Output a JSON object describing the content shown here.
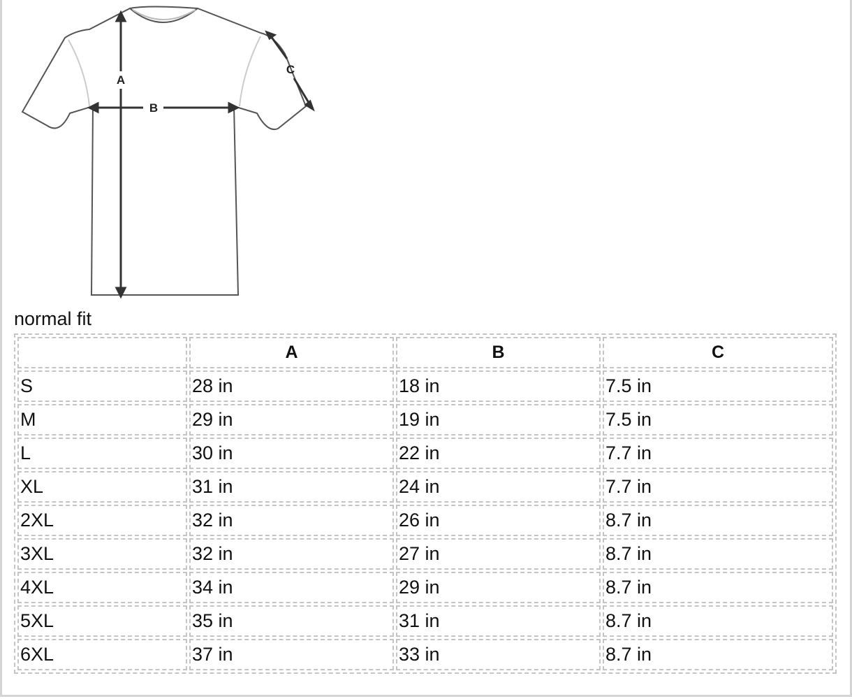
{
  "diagram": {
    "labels": [
      "A",
      "B",
      "C"
    ]
  },
  "fit_label": "normal fit",
  "table": {
    "headers": [
      "",
      "A",
      "B",
      "C"
    ],
    "rows": [
      [
        "S",
        "28 in",
        "18 in",
        "7.5 in"
      ],
      [
        "M",
        "29 in",
        "19 in",
        "7.5 in"
      ],
      [
        "L",
        "30 in",
        "22 in",
        "7.7 in"
      ],
      [
        "XL",
        "31 in",
        "24 in",
        "7.7 in"
      ],
      [
        "2XL",
        "32 in",
        "26 in",
        "8.7 in"
      ],
      [
        "3XL",
        "32 in",
        "27 in",
        "8.7 in"
      ],
      [
        "4XL",
        "34 in",
        "29 in",
        "8.7 in"
      ],
      [
        "5XL",
        "35 in",
        "31 in",
        "8.7 in"
      ],
      [
        "6XL",
        "37 in",
        "33 in",
        "8.7 in"
      ]
    ]
  }
}
